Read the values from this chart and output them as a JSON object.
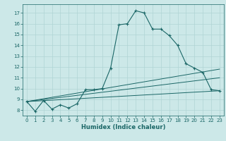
{
  "xlabel": "Humidex (Indice chaleur)",
  "bg_color": "#cce8e8",
  "grid_color": "#b0d4d4",
  "line_color": "#1a6666",
  "xlim": [
    -0.5,
    23.5
  ],
  "ylim": [
    7.5,
    17.8
  ],
  "xticks": [
    0,
    1,
    2,
    3,
    4,
    5,
    6,
    7,
    8,
    9,
    10,
    11,
    12,
    13,
    14,
    15,
    16,
    17,
    18,
    19,
    20,
    21,
    22,
    23
  ],
  "yticks": [
    8,
    9,
    10,
    11,
    12,
    13,
    14,
    15,
    16,
    17
  ],
  "curve1_x": [
    0,
    1,
    2,
    3,
    4,
    5,
    6,
    7,
    8,
    9,
    10,
    11,
    12,
    13,
    14,
    15,
    16,
    17,
    18,
    19,
    20,
    21,
    22,
    23
  ],
  "curve1_y": [
    8.8,
    7.9,
    8.9,
    8.1,
    8.5,
    8.2,
    8.6,
    9.9,
    9.9,
    10.0,
    11.9,
    15.9,
    16.0,
    17.2,
    17.0,
    15.5,
    15.5,
    14.9,
    14.0,
    12.3,
    11.9,
    11.5,
    9.9,
    9.8
  ],
  "curve2_x": [
    0,
    23
  ],
  "curve2_y": [
    8.8,
    11.8
  ],
  "curve3_x": [
    0,
    23
  ],
  "curve3_y": [
    8.8,
    11.0
  ],
  "curve4_x": [
    0,
    23
  ],
  "curve4_y": [
    8.8,
    9.8
  ]
}
